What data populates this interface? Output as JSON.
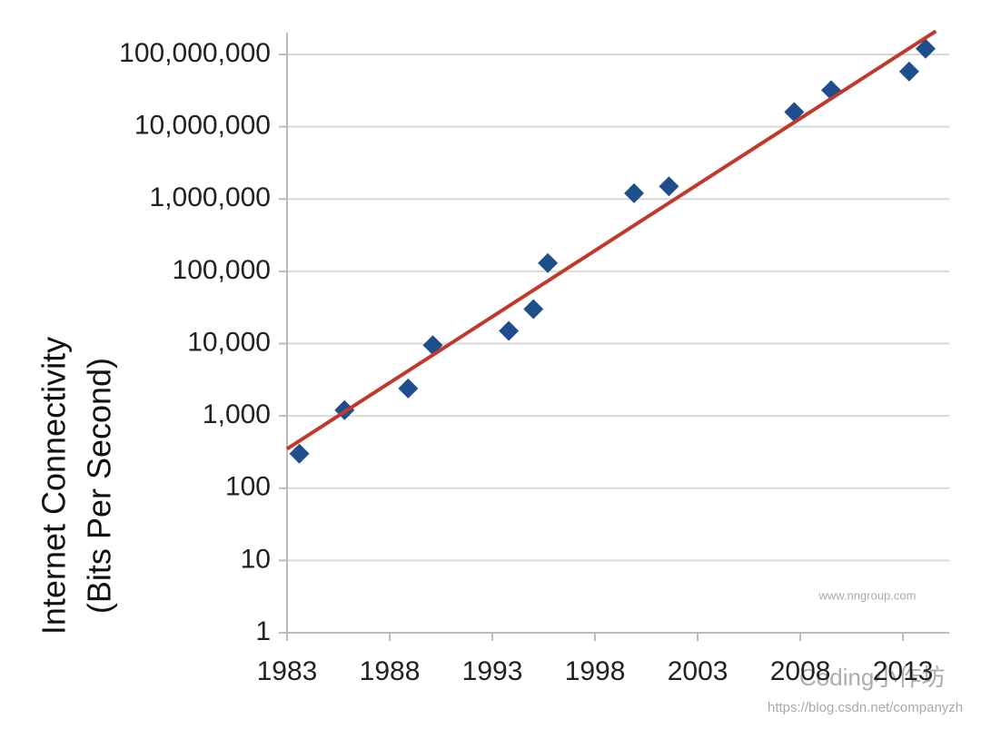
{
  "chart_data": {
    "type": "scatter",
    "y_label_lines": [
      "Internet Connectivity",
      "(Bits Per Second)"
    ],
    "watermarks": [
      "www.nngroup.com",
      "Coding小作坊",
      "https://blog.csdn.net/companyzh"
    ],
    "log_y": true,
    "grid": true,
    "xlim": [
      1983,
      2015.25
    ],
    "ylim": [
      1,
      200000000
    ],
    "xticks": [
      1983,
      1988,
      1993,
      1998,
      2003,
      2008,
      2013
    ],
    "yticks": [
      1,
      10,
      100,
      {
        "value": 1000,
        "label": "1,000"
      },
      {
        "value": 10000,
        "label": "10,000"
      },
      {
        "value": 100000,
        "label": "100,000"
      },
      {
        "value": 1000000,
        "label": "1,000,000"
      },
      {
        "value": 10000000,
        "label": "10,000,000"
      },
      {
        "value": 100000000,
        "label": "100,000,000"
      }
    ],
    "series": [
      {
        "type": "scatter",
        "color": "#1f4e8c",
        "x": [
          1983.6,
          1985.8,
          1988.9,
          1990.1,
          1993.8,
          1995.0,
          1995.7,
          1999.9,
          2001.6,
          2007.7,
          2009.5,
          2013.3,
          2014.1
        ],
        "values": [
          300,
          1200,
          2400,
          9500,
          15000,
          30000,
          130000,
          1200000,
          1500000,
          16000000,
          32000000,
          58000000,
          120000000
        ]
      },
      {
        "type": "line",
        "color": "#c0392b",
        "x": [
          1983,
          2014.6
        ],
        "values": [
          350,
          210000000
        ]
      }
    ]
  }
}
